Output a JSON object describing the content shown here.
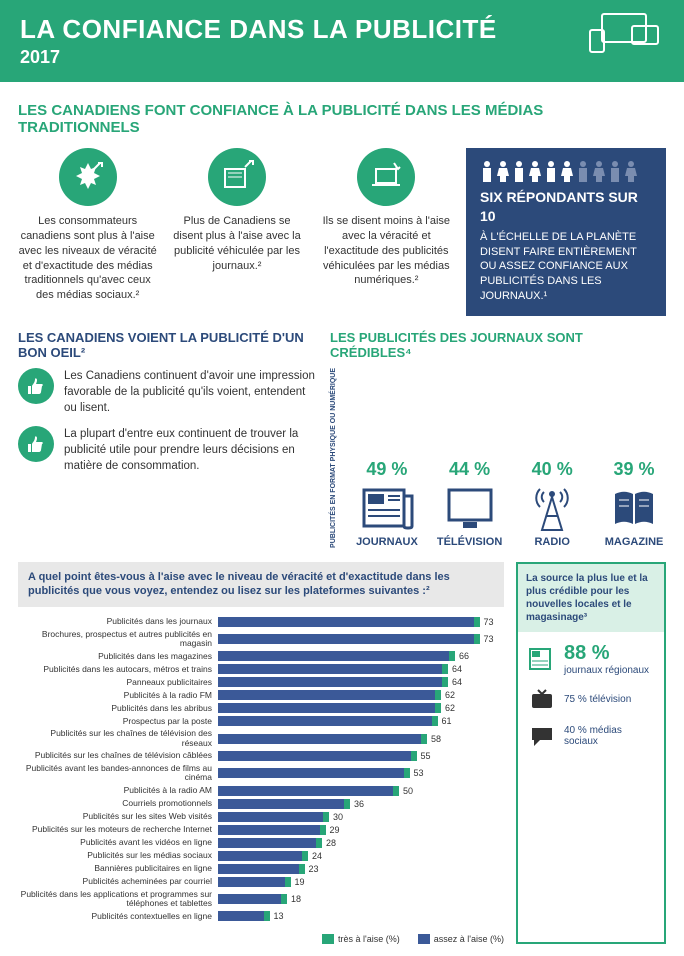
{
  "header": {
    "title": "LA CONFIANCE DANS LA PUBLICITÉ",
    "year": "2017"
  },
  "section1_title": "LES CANADIENS FONT CONFIANCE À LA PUBLICITÉ DANS LES MÉDIAS TRADITIONNELS",
  "blocks": [
    "Les consommateurs canadiens sont plus à l'aise avec les niveaux de véracité et d'exactitude des médias traditionnels qu'avec ceux des médias sociaux.²",
    "Plus de Canadiens se disent plus à l'aise avec la publicité véhiculée par les journaux.²",
    "Ils se disent moins à l'aise avec la véracité et l'exactitude des publicités véhiculées par les médias numériques.²"
  ],
  "six_box": {
    "headline": "SIX RÉPONDANTS SUR 10",
    "body": "À L'ÉCHELLE DE LA PLANÈTE DISENT FAIRE ENTIÈREMENT OU ASSEZ CONFIANCE AUX PUBLICITÉS DANS LES JOURNAUX.¹"
  },
  "left_title": "LES CANADIENS VOIENT LA PUBLICITÉ D'UN BON OEIL²",
  "thumbs": [
    "Les Canadiens continuent d'avoir une impression favorable de la publicité qu'ils voient, entendent ou lisent.",
    "La plupart d'entre eux continuent de trouver la publicité utile pour prendre leurs décisions en matière de consommation."
  ],
  "cred_title": "LES PUBLICITÉS DES JOURNAUX SONT CRÉDIBLES⁴",
  "cred_vert": "PUBLICITÉS EN FORMAT PHYSIQUE OU NUMÉRIQUE",
  "cred_items": [
    {
      "pct": "49 %",
      "label": "JOURNAUX"
    },
    {
      "pct": "44 %",
      "label": "TÉLÉVISION"
    },
    {
      "pct": "40 %",
      "label": "RADIO"
    },
    {
      "pct": "39 %",
      "label": "MAGAZINE"
    }
  ],
  "chart": {
    "question": "A quel point êtes-vous à l'aise avec le niveau de véracité et d'exactitude dans les publicités que vous voyez, entendez ou lisez sur les plateformes suivantes :²",
    "max": 80,
    "bar_color": "#3b5998",
    "tip_color": "#28a678",
    "rows": [
      {
        "label": "Publicités dans les journaux",
        "val": 73
      },
      {
        "label": "Brochures, prospectus et autres publicités en magasin",
        "val": 73
      },
      {
        "label": "Publicités dans les magazines",
        "val": 66
      },
      {
        "label": "Publicités dans les autocars, métros et trains",
        "val": 64
      },
      {
        "label": "Panneaux publicitaires",
        "val": 64
      },
      {
        "label": "Publicités à la radio FM",
        "val": 62
      },
      {
        "label": "Publicités dans les abribus",
        "val": 62
      },
      {
        "label": "Prospectus par la poste",
        "val": 61
      },
      {
        "label": "Publicités sur les chaînes de télévision des réseaux",
        "val": 58
      },
      {
        "label": "Publicités sur les chaînes de télévision câblées",
        "val": 55
      },
      {
        "label": "Publicités avant les bandes-annonces de films au cinéma",
        "val": 53
      },
      {
        "label": "Publicités à la radio AM",
        "val": 50
      },
      {
        "label": "Courriels promotionnels",
        "val": 36
      },
      {
        "label": "Publicités sur les sites Web visités",
        "val": 30
      },
      {
        "label": "Publicités sur les moteurs de recherche Internet",
        "val": 29
      },
      {
        "label": "Publicités avant les vidéos en ligne",
        "val": 28
      },
      {
        "label": "Publicités sur les médias sociaux",
        "val": 24
      },
      {
        "label": "Bannières publicitaires en ligne",
        "val": 23
      },
      {
        "label": "Publicités acheminées par courriel",
        "val": 19
      },
      {
        "label": "Publicités dans les applications et programmes sur téléphones et tablettes",
        "val": 18
      },
      {
        "label": "Publicités contextuelles en ligne",
        "val": 13
      }
    ],
    "legend": {
      "a": "très à l'aise (%)",
      "b": "assez à l'aise (%)"
    }
  },
  "side": {
    "head": "La source la plus lue et la plus crédible pour les nouvelles locales et le magasinage³",
    "items": [
      {
        "pct": "88 %",
        "label": "journaux régionaux",
        "big": true
      },
      {
        "pct": "75 %",
        "label": "télévision",
        "big": false
      },
      {
        "pct": "40 %",
        "label": "médias sociaux",
        "big": false
      }
    ]
  },
  "colors": {
    "green": "#28a678",
    "navy": "#2c4a7a",
    "bar": "#3b5998"
  }
}
